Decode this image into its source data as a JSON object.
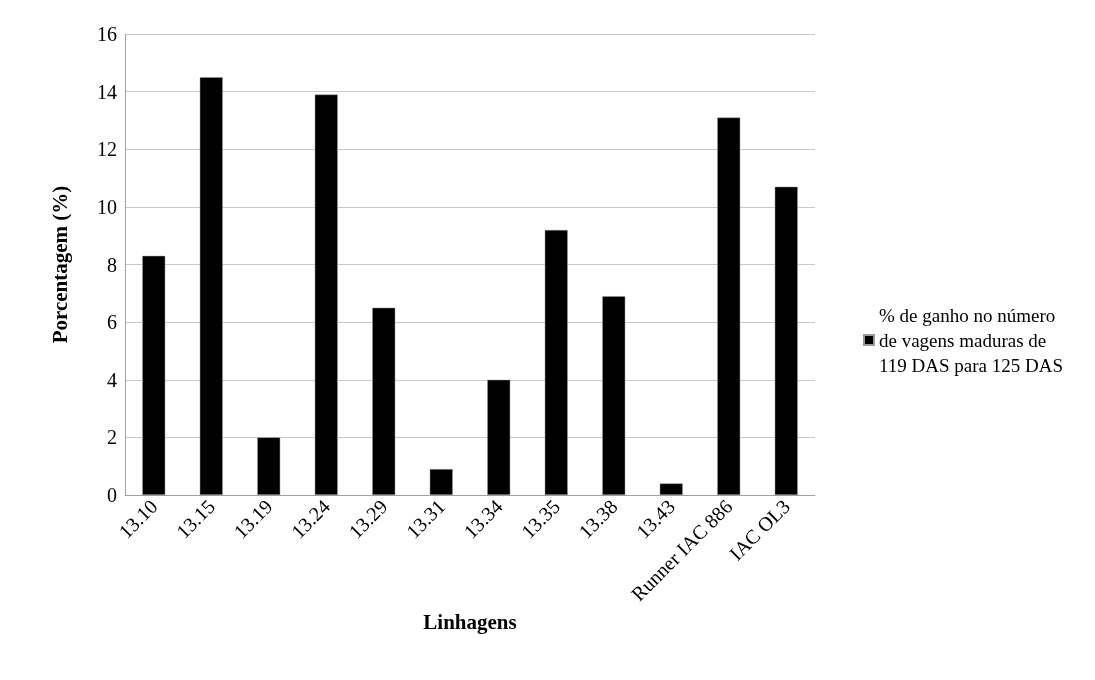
{
  "chart_data": {
    "type": "bar",
    "xlabel": "Linhagens",
    "ylabel": "Porcentagem (%)",
    "categories": [
      "13.10",
      "13.15",
      "13.19",
      "13.24",
      "13.29",
      "13.31",
      "13.34",
      "13.35",
      "13.38",
      "13.43",
      "Runner IAC 886",
      "IAC OL3"
    ],
    "series": [
      {
        "name": "% de ganho no número de vagens maduras de  119 DAS para 125 DAS",
        "color": "#000000",
        "values": [
          8.3,
          14.5,
          2.0,
          13.9,
          6.5,
          0.9,
          4.0,
          9.2,
          6.9,
          0.4,
          13.1,
          10.7
        ]
      }
    ],
    "ylim": [
      0,
      16
    ],
    "yticks": [
      0,
      2,
      4,
      6,
      8,
      10,
      12,
      14,
      16
    ],
    "grid": "y",
    "legend": "right"
  }
}
